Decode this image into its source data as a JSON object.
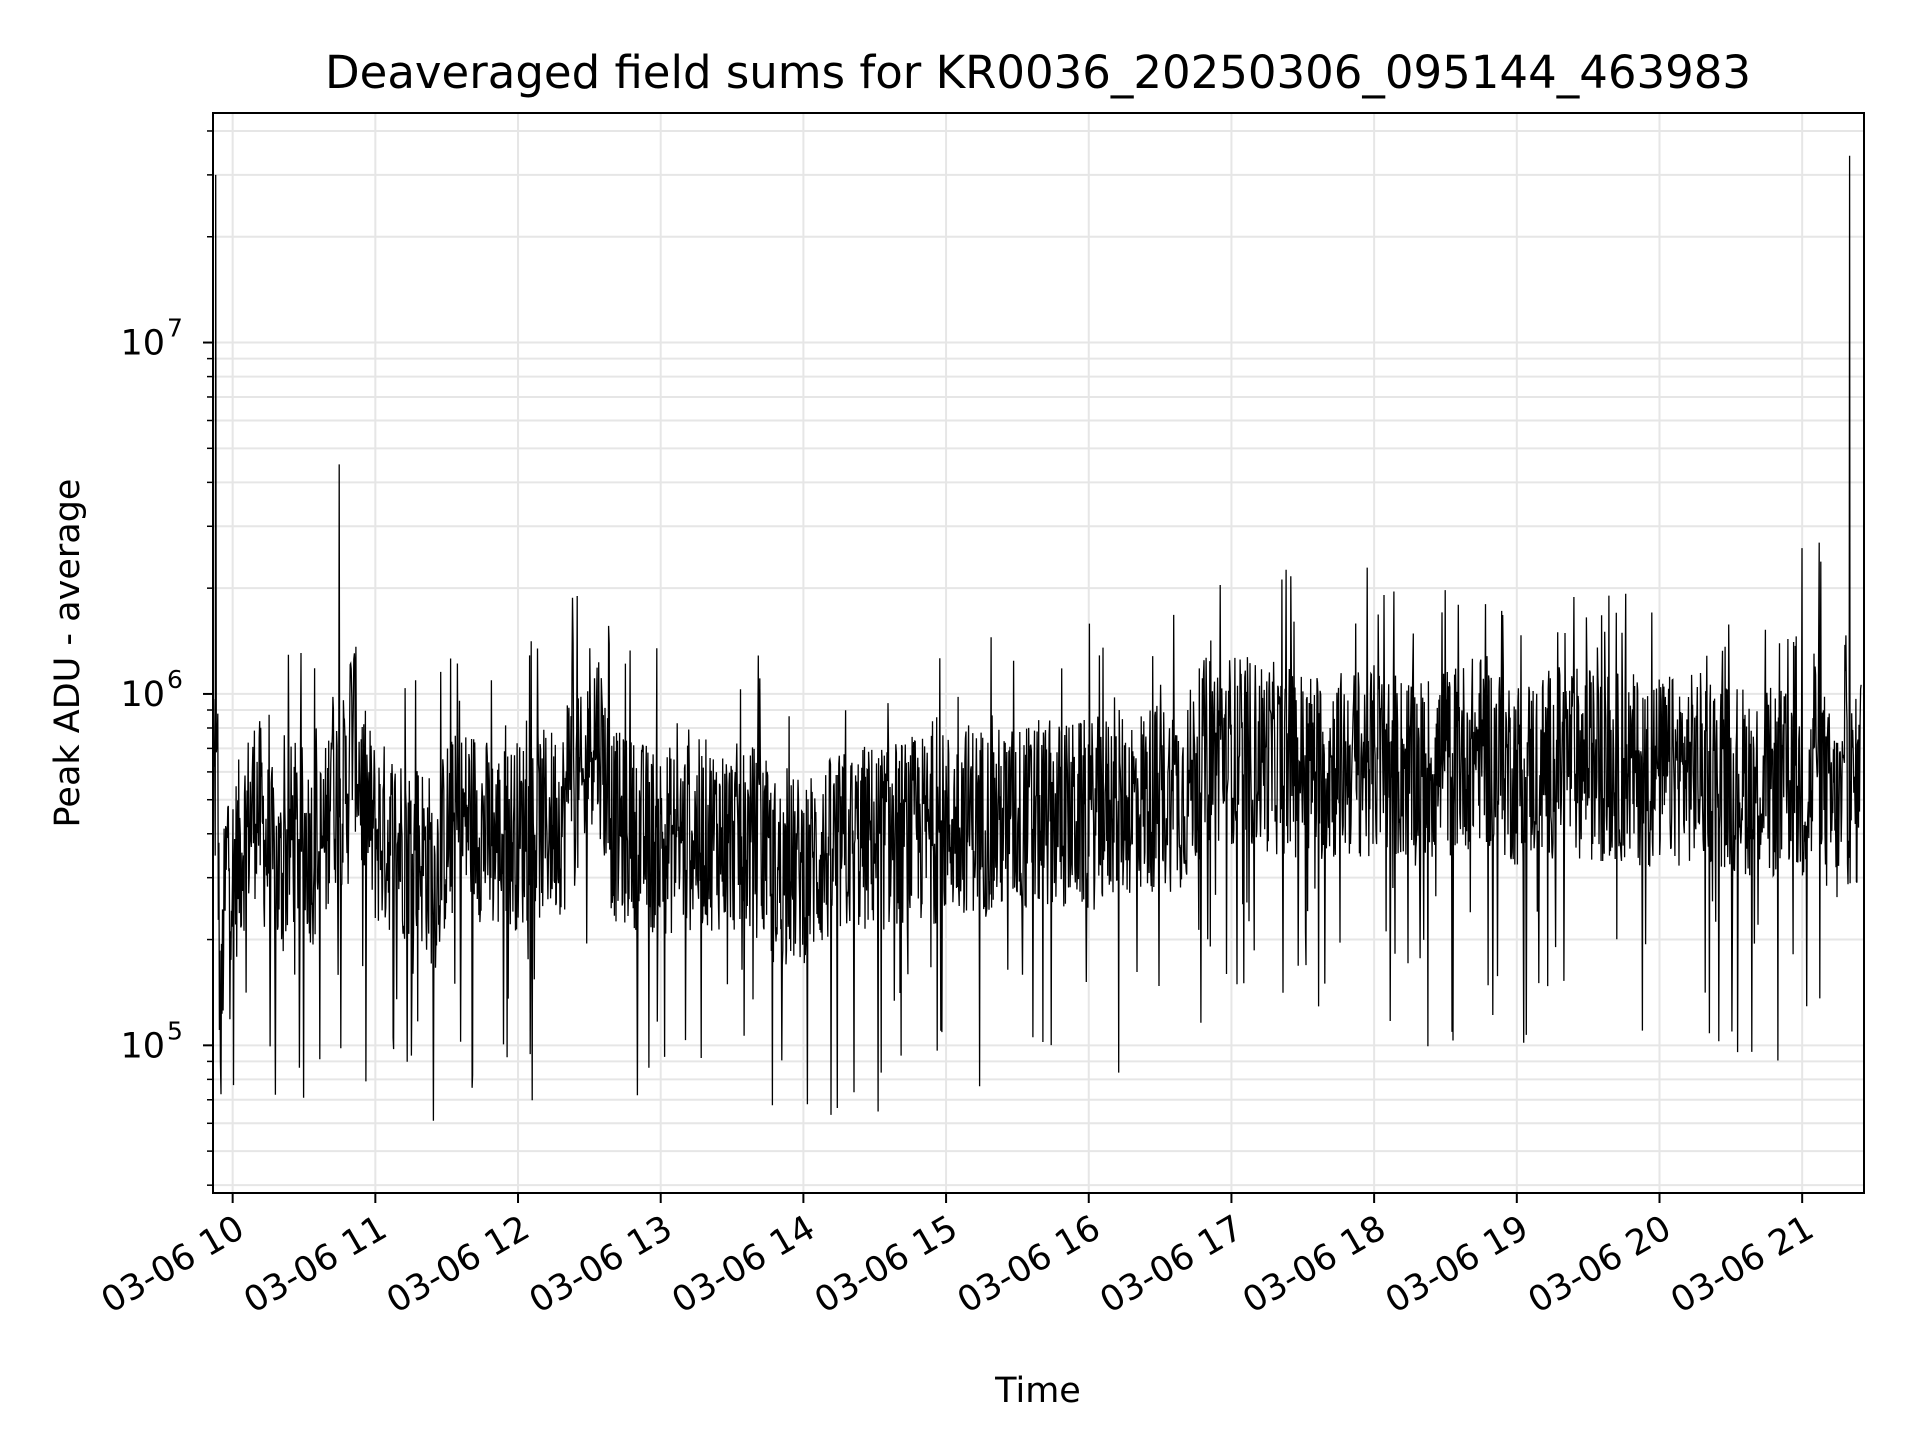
{
  "chart_data": {
    "type": "line",
    "title": "Deaveraged field sums for KR0036_20250306_095144_463983",
    "xlabel": "Time",
    "ylabel": "Peak ADU - average",
    "yscale": "log",
    "xlim": [
      "2025-03-06 09:51:44",
      "2025-03-06 21:26:00"
    ],
    "ylim": [
      38000,
      45000000
    ],
    "grid": true,
    "line_color": "#000000",
    "grid_color": "#e6e6e6",
    "x_ticks": [
      {
        "value": "2025-03-06 10:00",
        "label": "03-06 10"
      },
      {
        "value": "2025-03-06 11:00",
        "label": "03-06 11"
      },
      {
        "value": "2025-03-06 12:00",
        "label": "03-06 12"
      },
      {
        "value": "2025-03-06 13:00",
        "label": "03-06 13"
      },
      {
        "value": "2025-03-06 14:00",
        "label": "03-06 14"
      },
      {
        "value": "2025-03-06 15:00",
        "label": "03-06 15"
      },
      {
        "value": "2025-03-06 16:00",
        "label": "03-06 16"
      },
      {
        "value": "2025-03-06 17:00",
        "label": "03-06 17"
      },
      {
        "value": "2025-03-06 18:00",
        "label": "03-06 18"
      },
      {
        "value": "2025-03-06 19:00",
        "label": "03-06 19"
      },
      {
        "value": "2025-03-06 20:00",
        "label": "03-06 20"
      },
      {
        "value": "2025-03-06 21:00",
        "label": "03-06 21"
      }
    ],
    "y_ticks": [
      {
        "value": 100000,
        "base": "10",
        "exp": "5"
      },
      {
        "value": 1000000,
        "base": "10",
        "exp": "6"
      },
      {
        "value": 10000000,
        "base": "10",
        "exp": "7"
      }
    ],
    "series": [
      {
        "x": [
          "2025-03-06 09:52",
          "2025-03-06 09:53",
          "2025-03-06 09:54",
          "2025-03-06 09:55",
          "2025-03-06 09:56",
          "2025-03-06 09:58",
          "2025-03-06 10:00",
          "2025-03-06 10:05",
          "2025-03-06 10:10",
          "2025-03-06 10:15",
          "2025-03-06 10:20",
          "2025-03-06 10:25",
          "2025-03-06 10:30",
          "2025-03-06 10:35",
          "2025-03-06 10:40",
          "2025-03-06 10:45",
          "2025-03-06 10:50",
          "2025-03-06 10:55",
          "2025-03-06 11:00",
          "2025-03-06 11:10",
          "2025-03-06 11:20",
          "2025-03-06 11:25",
          "2025-03-06 11:30",
          "2025-03-06 11:40",
          "2025-03-06 11:50",
          "2025-03-06 12:00",
          "2025-03-06 12:10",
          "2025-03-06 12:20",
          "2025-03-06 12:25",
          "2025-03-06 12:40",
          "2025-03-06 13:00",
          "2025-03-06 13:20",
          "2025-03-06 13:40",
          "2025-03-06 13:50",
          "2025-03-06 14:00",
          "2025-03-06 14:10",
          "2025-03-06 14:20",
          "2025-03-06 14:40",
          "2025-03-06 15:00",
          "2025-03-06 15:10",
          "2025-03-06 15:20",
          "2025-03-06 15:40",
          "2025-03-06 16:00",
          "2025-03-06 16:20",
          "2025-03-06 16:40",
          "2025-03-06 16:50",
          "2025-03-06 17:00",
          "2025-03-06 17:20",
          "2025-03-06 17:40",
          "2025-03-06 18:00",
          "2025-03-06 18:20",
          "2025-03-06 18:45",
          "2025-03-06 19:00",
          "2025-03-06 19:20",
          "2025-03-06 19:40",
          "2025-03-06 20:00",
          "2025-03-06 20:20",
          "2025-03-06 20:40",
          "2025-03-06 20:55",
          "2025-03-06 21:00",
          "2025-03-06 21:10",
          "2025-03-06 21:15",
          "2025-03-06 21:18",
          "2025-03-06 21:20",
          "2025-03-06 21:25"
        ],
        "values": [
          850000,
          30000000,
          300000,
          90000,
          200000,
          380000,
          300000,
          400000,
          500000,
          350000,
          300000,
          400000,
          380000,
          350000,
          400000,
          4500000,
          900000,
          500000,
          400000,
          380000,
          350000,
          300000,
          400000,
          450000,
          380000,
          400000,
          420000,
          450000,
          1900000,
          420000,
          380000,
          400000,
          380000,
          300000,
          320000,
          350000,
          380000,
          400000,
          420000,
          450000,
          430000,
          450000,
          450000,
          500000,
          520000,
          700000,
          700000,
          650000,
          620000,
          650000,
          600000,
          700000,
          600000,
          650000,
          620000,
          600000,
          620000,
          560000,
          550000,
          2600000,
          500000,
          450000,
          500000,
          34000000,
          520000
        ]
      }
    ]
  }
}
